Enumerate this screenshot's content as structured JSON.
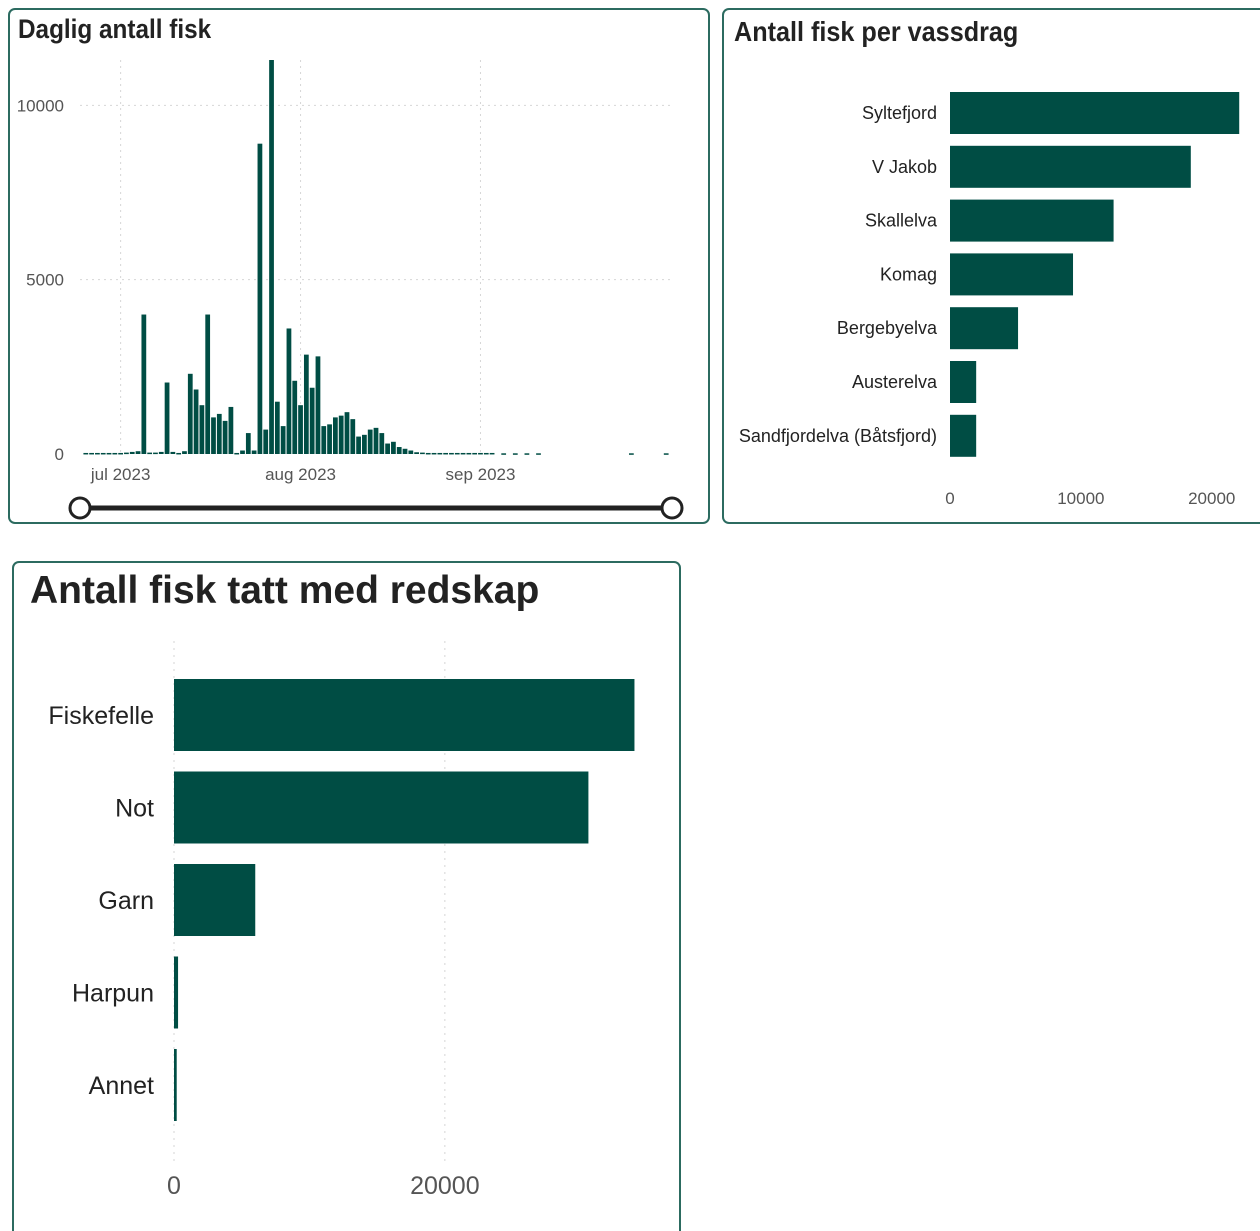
{
  "bar_color": "#004d44",
  "panel_border_color": "#2c6b60",
  "chart_data": [
    {
      "type": "bar",
      "title": "Daglig antall fisk",
      "x_tick_labels": [
        "jul 2023",
        "aug 2023",
        "sep 2023"
      ],
      "y_tick_labels": [
        "0",
        "5000",
        "10000"
      ],
      "ylim": [
        0,
        11300
      ],
      "xlim": [
        "2023-06-24",
        "2023-10-04"
      ],
      "grid": true,
      "range_slider": {
        "start": "2023-06-24",
        "end": "2023-10-04"
      },
      "series": [
        {
          "x": [
            "2023-06-25",
            "2023-06-26",
            "2023-06-27",
            "2023-06-28",
            "2023-06-29",
            "2023-06-30",
            "2023-07-01",
            "2023-07-02",
            "2023-07-03",
            "2023-07-04",
            "2023-07-05",
            "2023-07-06",
            "2023-07-07",
            "2023-07-08",
            "2023-07-09",
            "2023-07-10",
            "2023-07-11",
            "2023-07-12",
            "2023-07-13",
            "2023-07-14",
            "2023-07-15",
            "2023-07-16",
            "2023-07-17",
            "2023-07-18",
            "2023-07-19",
            "2023-07-20",
            "2023-07-21",
            "2023-07-22",
            "2023-07-23",
            "2023-07-24",
            "2023-07-25",
            "2023-07-26",
            "2023-07-27",
            "2023-07-28",
            "2023-07-29",
            "2023-07-30",
            "2023-07-31",
            "2023-08-01",
            "2023-08-02",
            "2023-08-03",
            "2023-08-04",
            "2023-08-05",
            "2023-08-06",
            "2023-08-07",
            "2023-08-08",
            "2023-08-09",
            "2023-08-10",
            "2023-08-11",
            "2023-08-12",
            "2023-08-13",
            "2023-08-14",
            "2023-08-15",
            "2023-08-16",
            "2023-08-17",
            "2023-08-18",
            "2023-08-19",
            "2023-08-20",
            "2023-08-21",
            "2023-08-22",
            "2023-08-23",
            "2023-08-24",
            "2023-08-25",
            "2023-08-26",
            "2023-08-27",
            "2023-08-28",
            "2023-08-29",
            "2023-08-30",
            "2023-08-31",
            "2023-09-01",
            "2023-09-02",
            "2023-09-03",
            "2023-09-05",
            "2023-09-07",
            "2023-09-09",
            "2023-09-11",
            "2023-09-27",
            "2023-10-03"
          ],
          "values": [
            30,
            30,
            30,
            30,
            30,
            30,
            30,
            40,
            60,
            80,
            4000,
            40,
            40,
            60,
            2050,
            60,
            30,
            80,
            2300,
            1850,
            1400,
            4000,
            1050,
            1150,
            950,
            1350,
            30,
            100,
            600,
            100,
            8900,
            700,
            11300,
            1500,
            800,
            3600,
            2100,
            1400,
            2850,
            1900,
            2800,
            800,
            850,
            1050,
            1100,
            1200,
            1000,
            500,
            550,
            700,
            750,
            600,
            300,
            350,
            200,
            150,
            100,
            50,
            40,
            30,
            30,
            30,
            30,
            30,
            30,
            30,
            30,
            30,
            30,
            30,
            30,
            20,
            20,
            20,
            20,
            20,
            20
          ]
        }
      ]
    },
    {
      "type": "bar",
      "orientation": "horizontal",
      "title": "Antall fisk per vassdrag",
      "categories": [
        "Syltefjord",
        "V Jakob",
        "Skallelva",
        "Komag",
        "Bergebyelva",
        "Austerelva",
        "Sandfjordelva (Båtsfjord)"
      ],
      "values": [
        22100,
        18400,
        12500,
        9400,
        5200,
        2000,
        2000
      ],
      "x_tick_labels": [
        "0",
        "10000",
        "20000"
      ],
      "xlim": [
        0,
        23000
      ]
    },
    {
      "type": "bar",
      "orientation": "horizontal",
      "title": "Antall fisk tatt med redskap",
      "categories": [
        "Fiskefelle",
        "Not",
        "Garn",
        "Harpun",
        "Annet"
      ],
      "values": [
        34000,
        30600,
        6000,
        300,
        200
      ],
      "x_tick_labels": [
        "0",
        "20000"
      ],
      "xlim": [
        0,
        35000
      ],
      "grid": true
    }
  ]
}
